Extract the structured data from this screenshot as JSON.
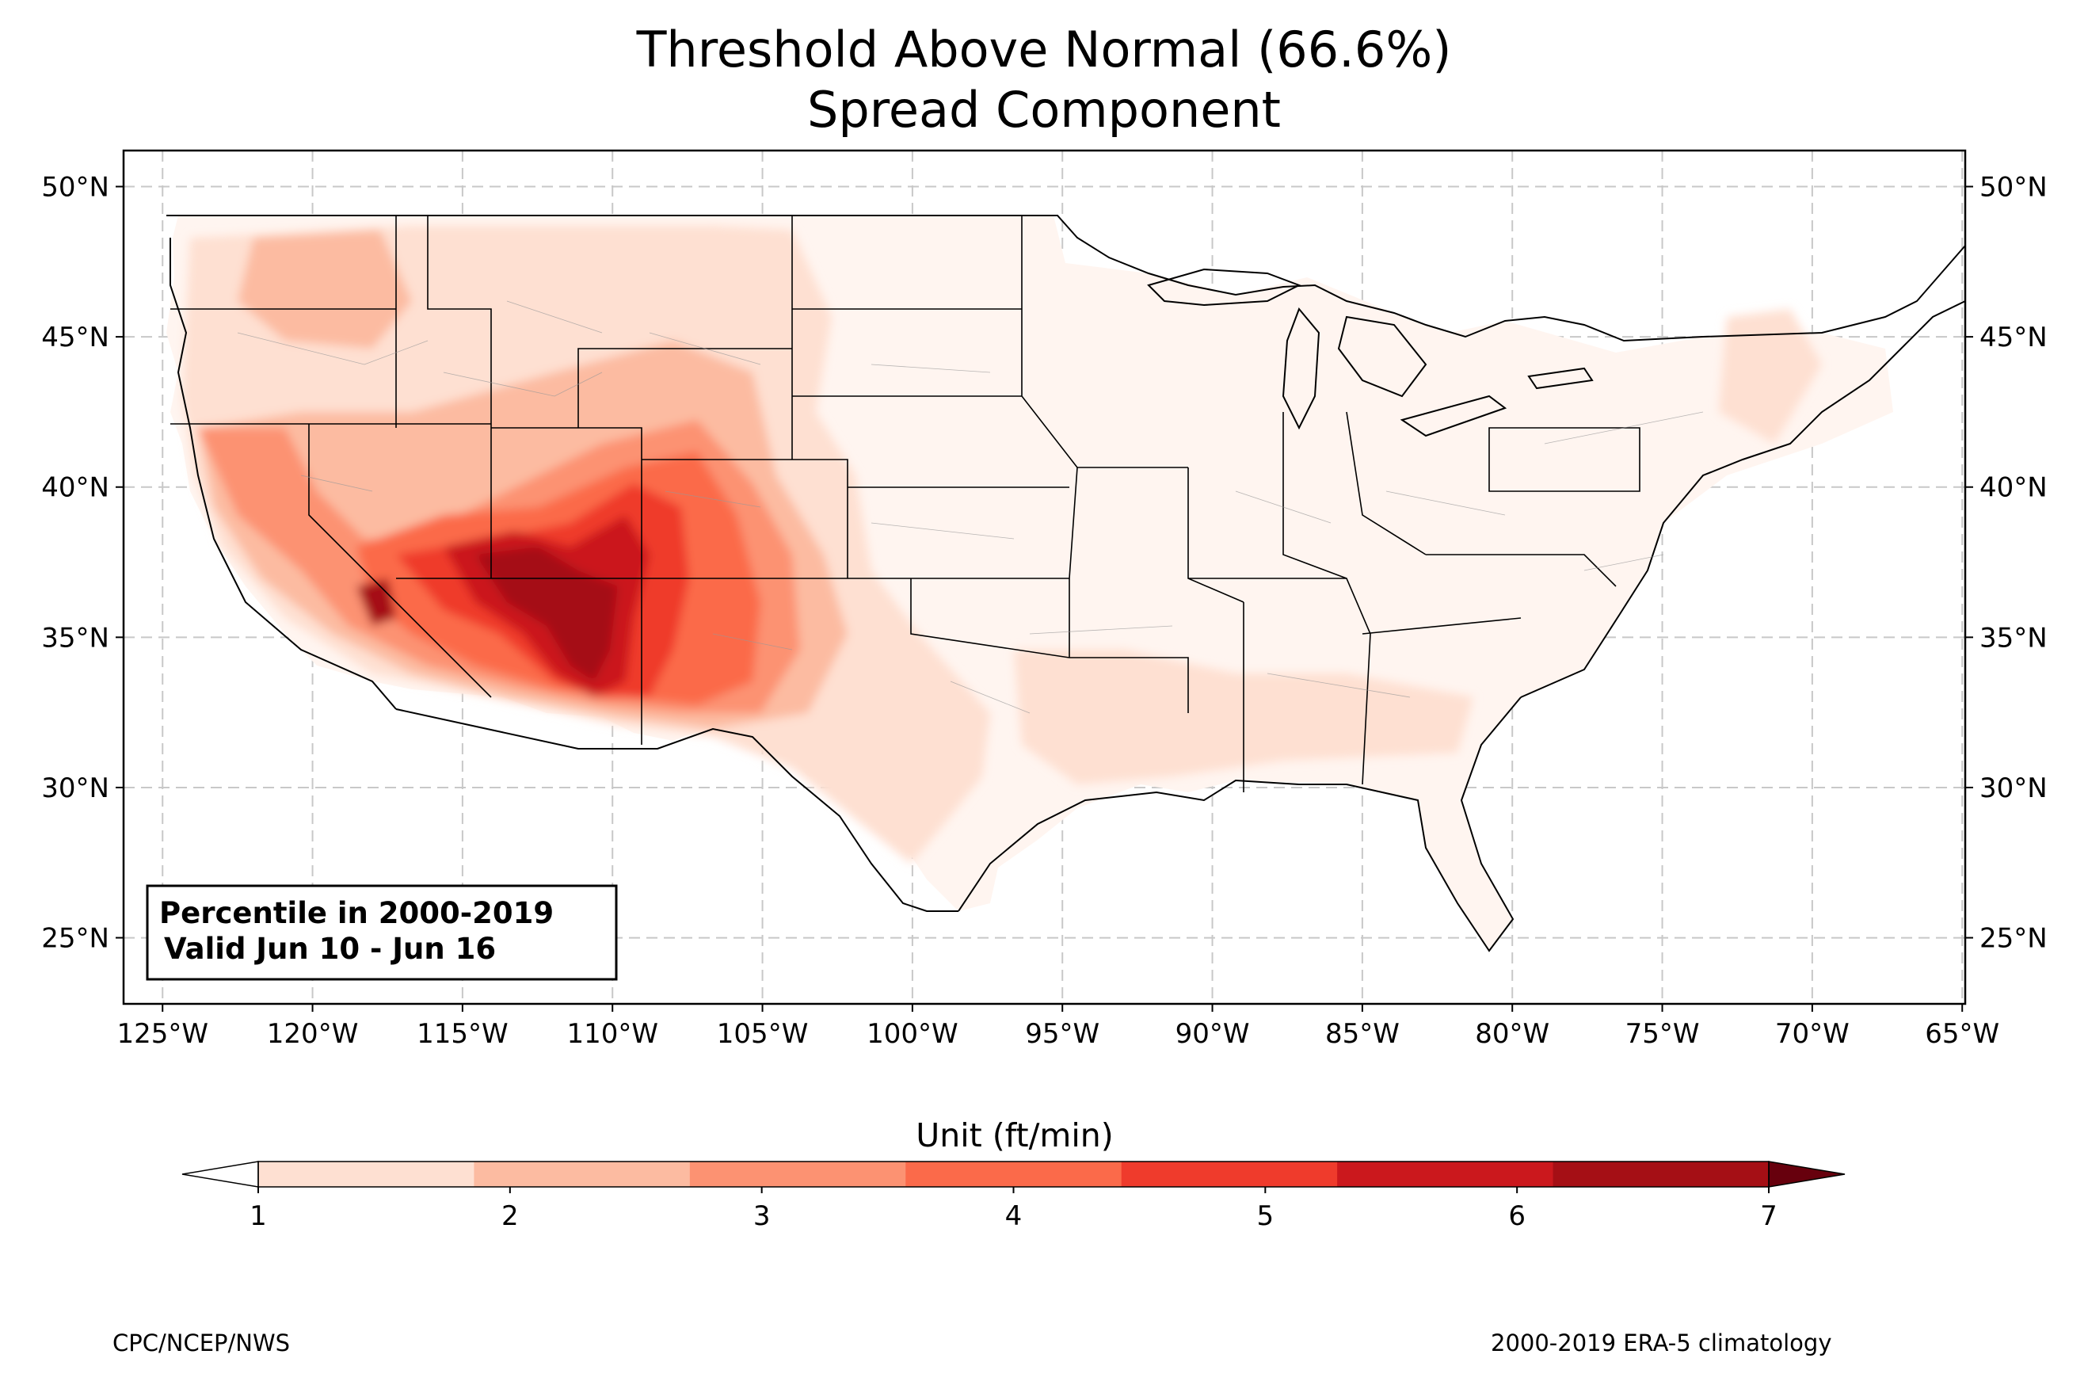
{
  "title_line1": "Threshold Above Normal (66.6%)",
  "title_line2": "Spread Component",
  "info_box": {
    "line1": "Percentile in 2000-2019",
    "line2": "Valid Jun 10 - Jun 16"
  },
  "map": {
    "lon_range": [
      -126.3,
      -64.9
    ],
    "lat_range": [
      22.8,
      51.2
    ],
    "lon_ticks": [
      "125°W",
      "120°W",
      "115°W",
      "110°W",
      "105°W",
      "100°W",
      "95°W",
      "90°W",
      "85°W",
      "80°W",
      "75°W",
      "70°W",
      "65°W"
    ],
    "lat_ticks": [
      "50°N",
      "45°N",
      "40°N",
      "35°N",
      "30°N",
      "25°N"
    ],
    "gridlines": true
  },
  "colorbar": {
    "label": "Unit (ft/min)",
    "ticks": [
      "1",
      "2",
      "3",
      "4",
      "5",
      "6",
      "7"
    ],
    "colors": [
      "#fee0d2",
      "#fcbba1",
      "#fc9272",
      "#fb6a4a",
      "#ef3b2c",
      "#cb181d",
      "#a50f15"
    ],
    "under_color": "#ffffff",
    "over_color": "#67000d"
  },
  "footer_left": "CPC/NCEP/NWS",
  "footer_right": "2000-2019 ERA-5 climatology",
  "colors": {
    "low_fill": "#fff5f0",
    "map_border": "#000000",
    "state_line": "#000000",
    "county_line": "#999999",
    "grid": "#c8c8c8"
  }
}
